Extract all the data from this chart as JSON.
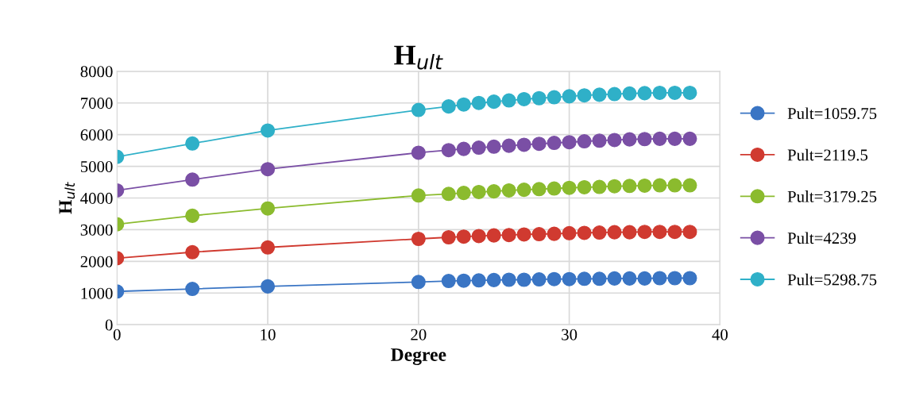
{
  "chart_data": {
    "type": "line",
    "title": "H$_{ult}$",
    "xlabel": "Degree",
    "ylabel": "H$_{ult}$",
    "x": [
      0,
      5,
      10,
      20,
      22,
      23,
      24,
      25,
      26,
      27,
      28,
      29,
      30,
      31,
      32,
      33,
      34,
      35,
      36,
      37,
      38
    ],
    "series": [
      {
        "name": "Pult=1059.75",
        "color": "#3a75c4",
        "values": [
          1050,
          1130,
          1210,
          1350,
          1380,
          1390,
          1400,
          1410,
          1420,
          1420,
          1430,
          1440,
          1440,
          1450,
          1450,
          1460,
          1460,
          1460,
          1470,
          1470,
          1470
        ]
      },
      {
        "name": "Pult=2119.5",
        "color": "#d03a30",
        "values": [
          2100,
          2290,
          2440,
          2710,
          2760,
          2780,
          2800,
          2820,
          2830,
          2850,
          2860,
          2870,
          2890,
          2900,
          2910,
          2920,
          2920,
          2930,
          2930,
          2930,
          2930
        ]
      },
      {
        "name": "Pult=3179.25",
        "color": "#8bbb2e",
        "values": [
          3170,
          3440,
          3670,
          4080,
          4130,
          4160,
          4190,
          4210,
          4240,
          4260,
          4280,
          4300,
          4320,
          4340,
          4350,
          4370,
          4380,
          4390,
          4400,
          4400,
          4400
        ]
      },
      {
        "name": "Pult=4239",
        "color": "#7a4fa5",
        "values": [
          4240,
          4580,
          4910,
          5430,
          5510,
          5550,
          5590,
          5620,
          5650,
          5680,
          5710,
          5740,
          5760,
          5790,
          5810,
          5830,
          5850,
          5860,
          5870,
          5870,
          5870
        ]
      },
      {
        "name": "Pult=5298.75",
        "color": "#2fb0c8",
        "values": [
          5300,
          5720,
          6130,
          6780,
          6890,
          6950,
          7000,
          7040,
          7080,
          7120,
          7150,
          7180,
          7210,
          7240,
          7260,
          7280,
          7300,
          7310,
          7320,
          7320,
          7320
        ]
      }
    ],
    "xlim": [
      0,
      40
    ],
    "xticks": [
      0,
      10,
      20,
      30,
      40
    ],
    "ylim": [
      0,
      8000
    ],
    "yticks": [
      0,
      1000,
      2000,
      3000,
      4000,
      5000,
      6000,
      7000,
      8000
    ],
    "grid": true,
    "legend": "right",
    "marker": "circle",
    "line_style": "solid"
  }
}
